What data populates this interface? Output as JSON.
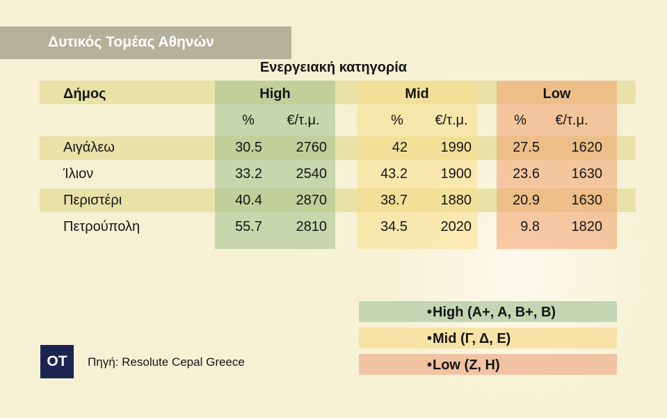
{
  "header": {
    "title": "Δυτικός Τομέας Αθηνών"
  },
  "group_title": "Ενεργειακή κατηγορία",
  "colors": {
    "high": "#a0c08c",
    "mid": "#fade8c",
    "low": "#f0a06e",
    "band": "#e8e2a9",
    "logo": "#1c2452"
  },
  "chart_data": {
    "type": "table",
    "row_header": "Δήμος",
    "groups": [
      "High",
      "Mid",
      "Low"
    ],
    "sub_headers": [
      "%",
      "€/τ.μ."
    ],
    "rows": [
      {
        "name": "Αιγάλεω",
        "values": [
          "30.5",
          "2760",
          "42",
          "1990",
          "27.5",
          "1620"
        ]
      },
      {
        "name": "Ίλιον",
        "values": [
          "33.2",
          "2540",
          "43.2",
          "1900",
          "23.6",
          "1630"
        ]
      },
      {
        "name": "Περιστέρι",
        "values": [
          "40.4",
          "2870",
          "38.7",
          "1880",
          "20.9",
          "1630"
        ]
      },
      {
        "name": "Πετρούπολη",
        "values": [
          "55.7",
          "2810",
          "34.5",
          "2020",
          "9.8",
          "1820"
        ]
      }
    ]
  },
  "legend": [
    {
      "bullet": "•",
      "label": "High (A+, A, B+, B)"
    },
    {
      "bullet": "•",
      "label": "Mid (Γ, Δ, Ε)"
    },
    {
      "bullet": "•",
      "label": "Low (Ζ, Η)"
    }
  ],
  "footer": {
    "logo": "OT",
    "source": "Πηγή: Resolute Cepal Greece"
  }
}
